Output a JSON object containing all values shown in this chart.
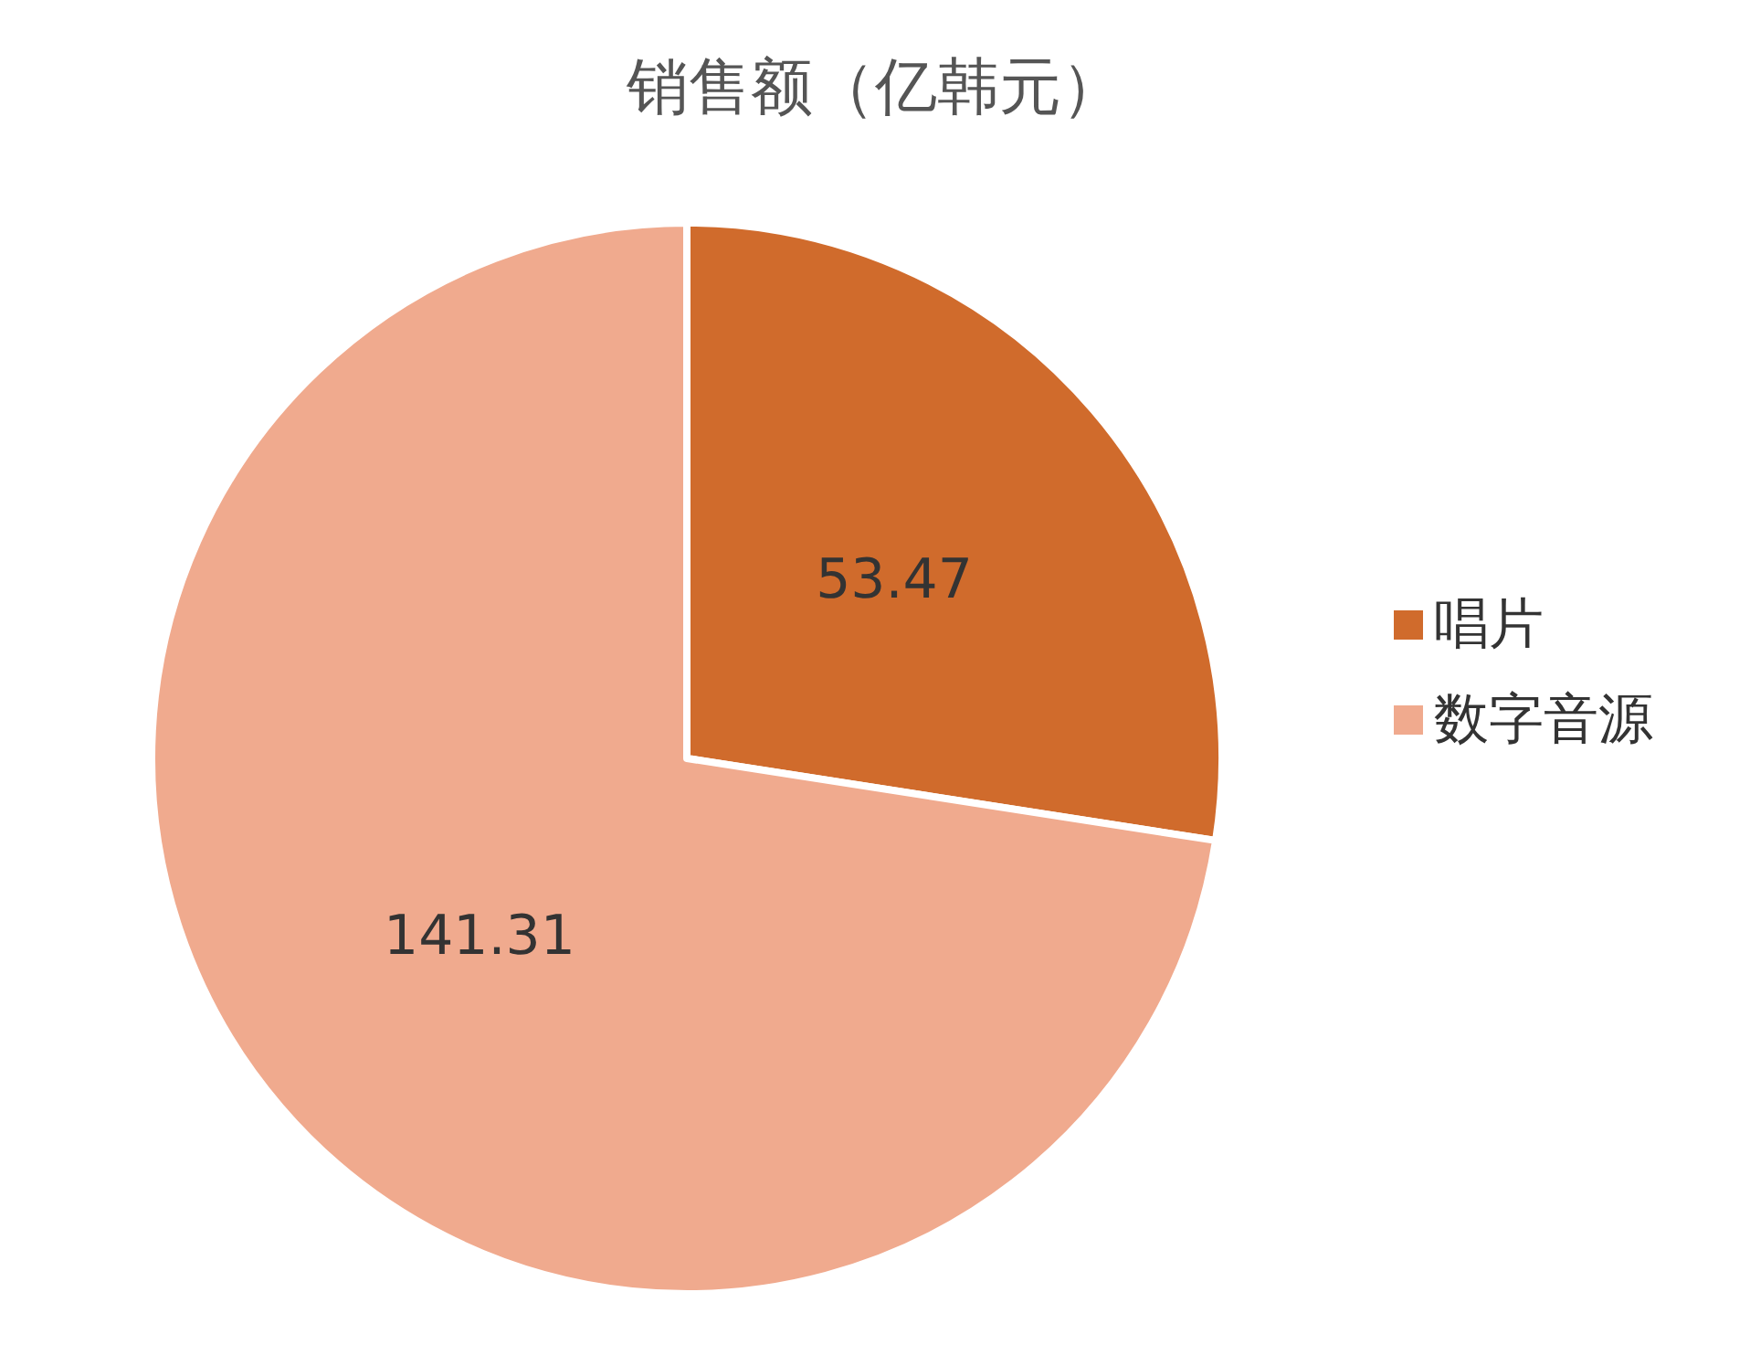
{
  "chart_data": {
    "type": "pie",
    "title": "销售额（亿韩元）",
    "categories": [
      "唱片",
      "数字音源"
    ],
    "values": [
      53.47,
      141.31
    ],
    "colors": [
      "#d06b2c",
      "#f0aa8e"
    ],
    "data_labels": true,
    "legend": "right"
  }
}
